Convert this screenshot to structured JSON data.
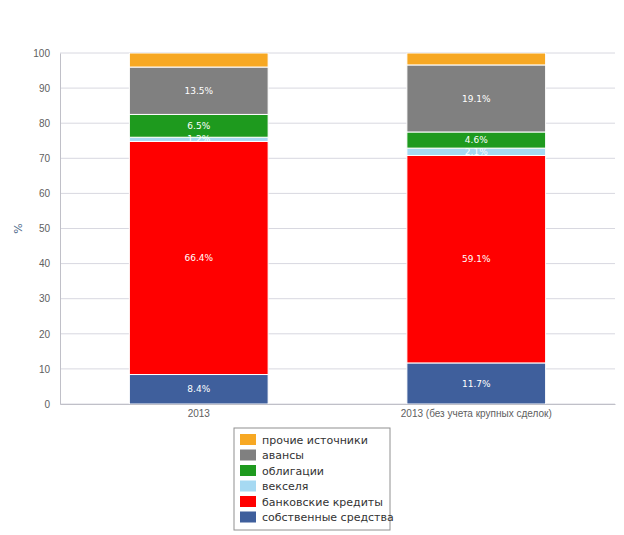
{
  "chart_data": {
    "type": "bar",
    "stacked": true,
    "data_labels": true,
    "grid": true,
    "legend": "bottom",
    "y_label": "%",
    "categories": [
      "2013",
      "2013 (без учета крупных сделок)"
    ],
    "ylim": [
      0,
      100
    ],
    "yticks": [
      0,
      10,
      20,
      30,
      40,
      50,
      60,
      70,
      80,
      90,
      100
    ],
    "series": [
      {
        "name": "собственные средства",
        "color": "#3f5f9c",
        "values": [
          8.4,
          11.7
        ],
        "value_labels": [
          "8.4%",
          "11.7%"
        ]
      },
      {
        "name": "банковские кредиты",
        "color": "#ff0000",
        "values": [
          66.4,
          59.1
        ],
        "value_labels": [
          "66.4%",
          "59.1%"
        ]
      },
      {
        "name": "векселя",
        "color": "#a6d9f2",
        "values": [
          1.2,
          2.1
        ],
        "value_labels": [
          "1.2%",
          "2.1%"
        ]
      },
      {
        "name": "облигации",
        "color": "#1e9a1e",
        "values": [
          6.5,
          4.6
        ],
        "value_labels": [
          "6.5%",
          "4.6%"
        ]
      },
      {
        "name": "авансы",
        "color": "#808080",
        "values": [
          13.5,
          19.1
        ],
        "value_labels": [
          "13.5%",
          "19.1%"
        ]
      },
      {
        "name": "прочие источники",
        "color": "#f7a823",
        "values": [
          4.0,
          3.4
        ],
        "value_labels": [
          null,
          null
        ]
      }
    ]
  }
}
